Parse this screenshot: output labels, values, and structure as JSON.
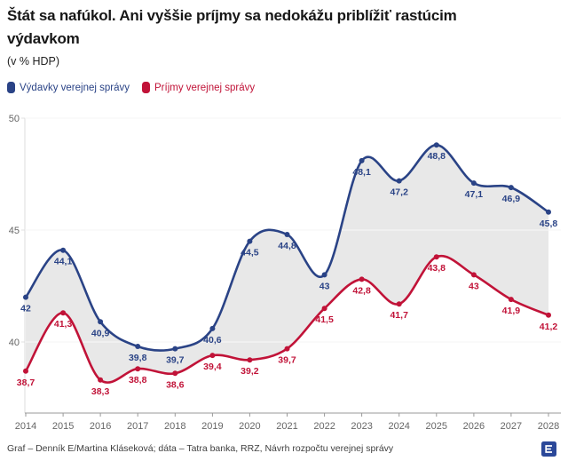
{
  "header": {
    "title": "Štát sa nafúkol. Ani vyššie príjmy sa nedokážu priblížiť rastúcim výdavkom",
    "title_lines": [
      "Štát sa nafúkol. Ani vyššie príjmy sa nedokážu priblížiť rastúcim",
      "výdavkom"
    ],
    "subtitle": "(v % HDP)"
  },
  "legend": {
    "items": [
      {
        "label": "Výdavky verejnej správy",
        "color": "#2a4386"
      },
      {
        "label": "Príjmy verejnej správy",
        "color": "#c11338"
      }
    ]
  },
  "chart_data": {
    "type": "line",
    "title": "Štát sa nafúkol. Ani vyššie príjmy sa nedokážu priblížiť rastúcim výdavkom",
    "subtitle": "(v % HDP)",
    "x": [
      2014,
      2015,
      2016,
      2017,
      2018,
      2019,
      2020,
      2021,
      2022,
      2023,
      2024,
      2025,
      2026,
      2027,
      2028
    ],
    "x_tick_labels": [
      "2014",
      "2015",
      "2016",
      "2017",
      "2018",
      "2019",
      "2020",
      "2021",
      "2022",
      "2023",
      "2024",
      "2025",
      "2026",
      "2027",
      "2028"
    ],
    "series": [
      {
        "name": "Výdavky verejnej správy",
        "color": "#2a4386",
        "values": [
          42,
          44.1,
          40.9,
          39.8,
          39.7,
          40.6,
          44.5,
          44.8,
          43,
          48.1,
          47.2,
          48.8,
          47.1,
          46.9,
          45.8
        ],
        "labels": [
          "42",
          "44,1",
          "40,9",
          "39,8",
          "39,7",
          "40,6",
          "44,5",
          "44,8",
          "43",
          "48,1",
          "47,2",
          "48,8",
          "47,1",
          "46,9",
          "45,8"
        ]
      },
      {
        "name": "Príjmy verejnej správy",
        "color": "#c11338",
        "values": [
          38.7,
          41.3,
          38.3,
          38.8,
          38.6,
          39.4,
          39.2,
          39.7,
          41.5,
          42.8,
          41.7,
          43.8,
          43,
          41.9,
          41.2
        ],
        "labels": [
          "38,7",
          "41,3",
          "38,3",
          "38,8",
          "38,6",
          "39,4",
          "39,2",
          "39,7",
          "41,5",
          "42,8",
          "41,7",
          "43,8",
          "43",
          "41,9",
          "41,2"
        ]
      }
    ],
    "yticks": [
      40,
      45,
      50
    ],
    "ytick_labels": [
      "40",
      "45",
      "50"
    ],
    "ylim": [
      37,
      50
    ],
    "grid": "horizontal",
    "legend_position": "top-left",
    "band_between_series": true,
    "band_color": "#e8e8e8"
  },
  "footer": {
    "credit": "Graf – Denník E/Martina Kláseková; dáta – Tatra banka, RRZ, Návrh rozpočtu verejnej správy",
    "logo": "dennik-e-logo",
    "logo_color": "#2b4899"
  }
}
